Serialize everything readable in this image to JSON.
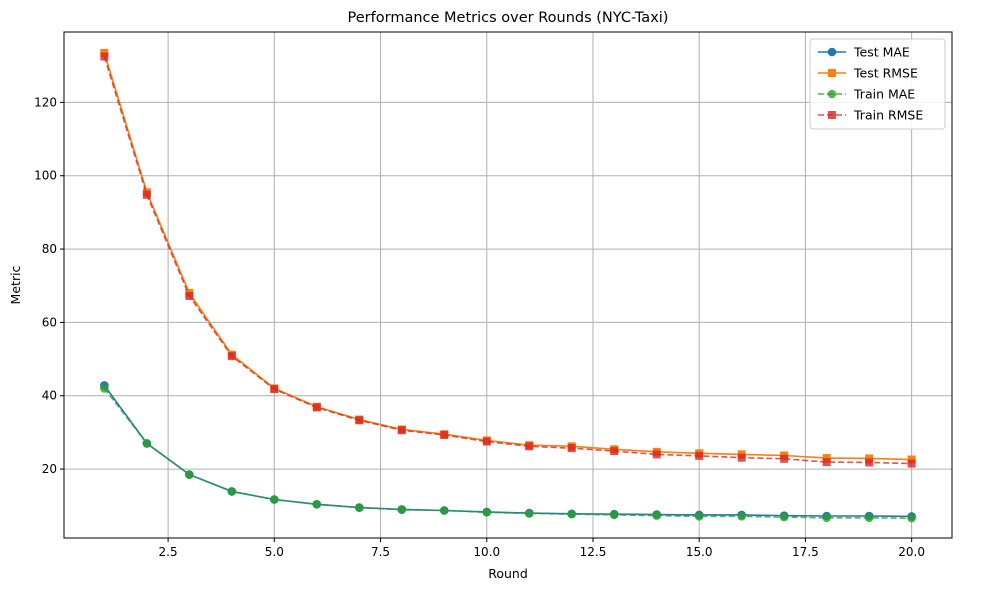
{
  "chart_data": {
    "type": "line",
    "title": "Performance Metrics over Rounds (NYC-Taxi)",
    "xlabel": "Round",
    "ylabel": "Metric",
    "xlim": [
      0.05,
      20.95
    ],
    "ylim": [
      1.2,
      139.2
    ],
    "xticks": [
      2.5,
      5.0,
      7.5,
      10.0,
      12.5,
      15.0,
      17.5,
      20.0
    ],
    "xtick_labels": [
      "2.5",
      "5.0",
      "7.5",
      "10.0",
      "12.5",
      "15.0",
      "17.5",
      "20.0"
    ],
    "yticks": [
      20,
      40,
      60,
      80,
      100,
      120
    ],
    "ytick_labels": [
      "20",
      "40",
      "60",
      "80",
      "100",
      "120"
    ],
    "grid": true,
    "legend_position": "top-right",
    "x": [
      1,
      2,
      3,
      4,
      5,
      6,
      7,
      8,
      9,
      10,
      11,
      12,
      13,
      14,
      15,
      16,
      17,
      18,
      19,
      20
    ],
    "series": [
      {
        "name": "Test MAE",
        "color": "#1f77b4",
        "marker": "circle",
        "linestyle": "solid",
        "alpha": 1.0,
        "values": [
          42.8,
          27.0,
          18.5,
          13.9,
          11.7,
          10.4,
          9.5,
          9.0,
          8.7,
          8.3,
          8.0,
          7.8,
          7.7,
          7.6,
          7.5,
          7.5,
          7.3,
          7.2,
          7.2,
          7.1
        ]
      },
      {
        "name": "Test RMSE",
        "color": "#ff7f0e",
        "marker": "square",
        "linestyle": "solid",
        "alpha": 1.0,
        "values": [
          133.5,
          95.5,
          68.0,
          51.2,
          42.0,
          37.0,
          33.5,
          30.8,
          29.5,
          27.8,
          26.5,
          26.2,
          25.4,
          24.7,
          24.3,
          24.0,
          23.7,
          23.0,
          22.9,
          22.6
        ]
      },
      {
        "name": "Train MAE",
        "color": "#2ca02c",
        "marker": "circle",
        "linestyle": "dashed",
        "alpha": 0.8,
        "values": [
          42.0,
          27.0,
          18.5,
          13.9,
          11.7,
          10.4,
          9.5,
          8.9,
          8.7,
          8.2,
          7.9,
          7.7,
          7.5,
          7.3,
          7.1,
          7.1,
          6.9,
          6.7,
          6.7,
          6.6
        ]
      },
      {
        "name": "Train RMSE",
        "color": "#d62728",
        "marker": "square",
        "linestyle": "dashed",
        "alpha": 0.8,
        "values": [
          132.5,
          94.8,
          67.2,
          50.8,
          41.8,
          36.8,
          33.3,
          30.6,
          29.3,
          27.5,
          26.2,
          25.7,
          24.9,
          24.0,
          23.6,
          23.1,
          22.8,
          21.9,
          21.8,
          21.5
        ]
      }
    ]
  }
}
